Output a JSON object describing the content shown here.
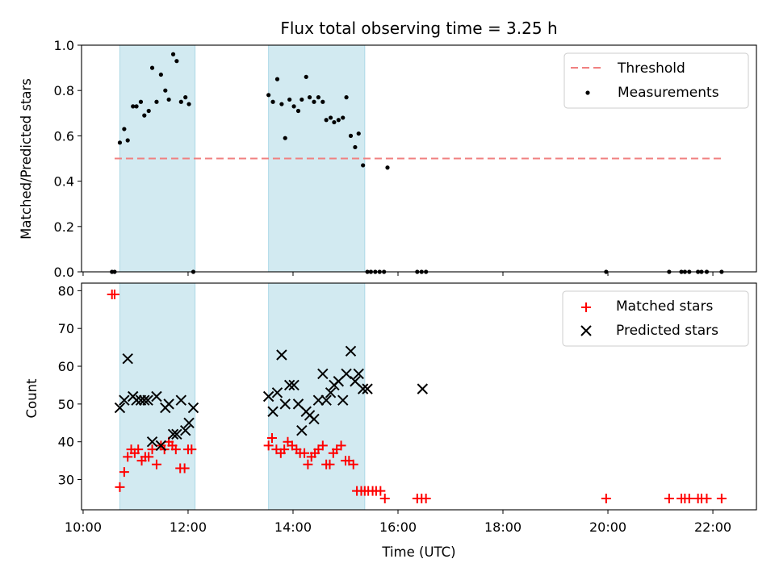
{
  "chart_data": [
    {
      "type": "scatter",
      "title": "Flux total observing time = 3.25 h",
      "xlabel": "",
      "ylabel": "Matched/Predicted stars",
      "ylim": [
        0,
        1
      ],
      "yticks": [
        "0.0",
        "0.2",
        "0.4",
        "0.6",
        "0.8",
        "1.0"
      ],
      "xlim_hours": [
        9.97,
        22.83
      ],
      "grid": false,
      "legend_position": "top-right",
      "legend": [
        "Threshold",
        "Measurements"
      ],
      "colors": {
        "threshold": "#f08080",
        "measurements": "#000000",
        "shade": "#add8e6"
      },
      "shaded_intervals": [
        [
          "10:42",
          "12:08"
        ],
        [
          "13:32",
          "15:22"
        ]
      ],
      "threshold": {
        "value": 0.5,
        "x_start": "10:36",
        "x_end": "22:10"
      },
      "series": [
        {
          "name": "Measurements",
          "x": [
            "10:33",
            "10:36",
            "10:42",
            "10:47",
            "10:51",
            "10:57",
            "11:01",
            "11:06",
            "11:10",
            "11:15",
            "11:19",
            "11:24",
            "11:29",
            "11:34",
            "11:38",
            "11:43",
            "11:47",
            "11:52",
            "11:57",
            "12:01",
            "12:06",
            "13:32",
            "13:37",
            "13:42",
            "13:47",
            "13:51",
            "13:56",
            "14:01",
            "14:06",
            "14:10",
            "14:15",
            "14:19",
            "14:24",
            "14:29",
            "14:34",
            "14:38",
            "14:43",
            "14:47",
            "14:52",
            "14:57",
            "15:01",
            "15:06",
            "15:11",
            "15:15",
            "15:20",
            "15:25",
            "15:29",
            "15:34",
            "15:39",
            "15:44",
            "15:48",
            "16:22",
            "16:27",
            "16:32",
            "19:58",
            "21:10",
            "21:24",
            "21:28",
            "21:33",
            "21:43",
            "21:47",
            "21:53",
            "22:10"
          ],
          "y": [
            0,
            0,
            0.57,
            0.63,
            0.58,
            0.73,
            0.73,
            0.75,
            0.69,
            0.71,
            0.9,
            0.75,
            0.87,
            0.8,
            0.76,
            0.96,
            0.93,
            0.75,
            0.77,
            0.74,
            0,
            0.78,
            0.75,
            0.85,
            0.74,
            0.59,
            0.76,
            0.73,
            0.71,
            0.76,
            0.86,
            0.77,
            0.75,
            0.77,
            0.75,
            0.67,
            0.68,
            0.66,
            0.67,
            0.68,
            0.77,
            0.6,
            0.55,
            0.61,
            0.47,
            0,
            0,
            0,
            0,
            0,
            0.46,
            0,
            0,
            0,
            0,
            0,
            0,
            0,
            0,
            0,
            0,
            0,
            0
          ]
        }
      ]
    },
    {
      "type": "scatter",
      "title": "",
      "xlabel": "Time (UTC)",
      "ylabel": "Count",
      "ylim": [
        22,
        82
      ],
      "yticks": [
        "30",
        "40",
        "50",
        "60",
        "70",
        "80"
      ],
      "xticks": [
        "10:00",
        "12:00",
        "14:00",
        "16:00",
        "18:00",
        "20:00",
        "22:00"
      ],
      "xlim_hours": [
        9.97,
        22.83
      ],
      "grid": false,
      "legend_position": "top-right",
      "legend": [
        "Matched stars",
        "Predicted stars"
      ],
      "colors": {
        "matched": "#ff0000",
        "predicted": "#000000",
        "shade": "#add8e6"
      },
      "shaded_intervals": [
        [
          "10:42",
          "12:08"
        ],
        [
          "13:32",
          "15:22"
        ]
      ],
      "series": [
        {
          "name": "Matched stars",
          "x": [
            "10:33",
            "10:36",
            "10:42",
            "10:47",
            "10:51",
            "10:55",
            "10:59",
            "11:03",
            "11:07",
            "11:11",
            "11:15",
            "11:19",
            "11:24",
            "11:29",
            "11:33",
            "11:38",
            "11:42",
            "11:46",
            "11:51",
            "11:56",
            "12:00",
            "12:04",
            "13:32",
            "13:36",
            "13:41",
            "13:46",
            "13:50",
            "13:54",
            "13:59",
            "14:04",
            "14:08",
            "14:13",
            "14:17",
            "14:21",
            "14:25",
            "14:29",
            "14:34",
            "14:38",
            "14:42",
            "14:46",
            "14:50",
            "14:55",
            "15:00",
            "15:04",
            "15:09",
            "15:13",
            "15:18",
            "15:22",
            "15:26",
            "15:31",
            "15:35",
            "15:40",
            "15:45",
            "16:22",
            "16:27",
            "16:32",
            "19:58",
            "21:10",
            "21:24",
            "21:28",
            "21:33",
            "21:43",
            "21:47",
            "21:53",
            "22:10"
          ],
          "y": [
            79,
            79,
            28,
            32,
            36,
            38,
            37,
            38,
            35,
            36,
            36,
            38,
            34,
            39,
            38,
            40,
            39,
            38,
            33,
            33,
            38,
            38,
            39,
            41,
            38,
            37,
            38,
            40,
            39,
            38,
            37,
            37,
            34,
            36,
            37,
            38,
            39,
            34,
            34,
            37,
            38,
            39,
            35,
            35,
            34,
            27,
            27,
            27,
            27,
            27,
            27,
            27,
            25,
            25,
            25,
            25,
            25,
            25,
            25,
            25,
            25,
            25,
            25,
            25,
            25
          ]
        },
        {
          "name": "Predicted stars",
          "x": [
            "10:42",
            "10:47",
            "10:51",
            "10:57",
            "11:01",
            "11:06",
            "11:10",
            "11:14",
            "11:19",
            "11:24",
            "11:29",
            "11:34",
            "11:38",
            "11:43",
            "11:47",
            "11:52",
            "11:57",
            "12:01",
            "12:06",
            "13:32",
            "13:37",
            "13:42",
            "13:47",
            "13:51",
            "13:56",
            "14:01",
            "14:06",
            "14:10",
            "14:15",
            "14:19",
            "14:24",
            "14:29",
            "14:34",
            "14:38",
            "14:43",
            "14:47",
            "14:52",
            "14:57",
            "15:01",
            "15:06",
            "15:11",
            "15:15",
            "15:20",
            "15:25",
            "16:28"
          ],
          "y": [
            49,
            51,
            62,
            52,
            51,
            51,
            51,
            51,
            40,
            52,
            39,
            49,
            50,
            42,
            42,
            51,
            43,
            45,
            49,
            52,
            48,
            53,
            63,
            50,
            55,
            55,
            50,
            43,
            48,
            47,
            46,
            51,
            58,
            51,
            53,
            55,
            56,
            51,
            58,
            64,
            56,
            58,
            54,
            54,
            54
          ]
        }
      ]
    }
  ]
}
